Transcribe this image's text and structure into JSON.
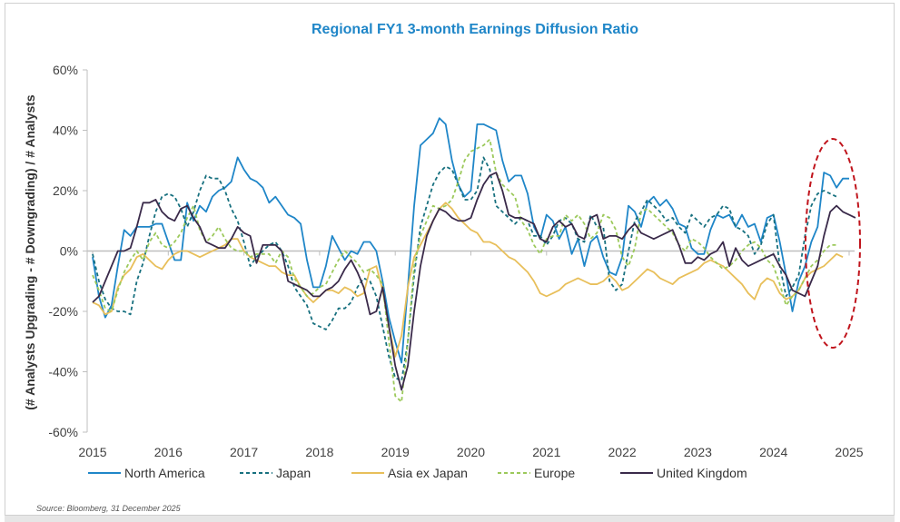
{
  "chart_data": {
    "type": "line",
    "title": "Regional FY1 3-month Earnings Diffusion Ratio",
    "xlabel": "",
    "ylabel": "(# Analysts Upgrading - # Downgrading) / #  Analysts",
    "x_start": 2015,
    "x_step_months": 1,
    "xlim": [
      2015,
      2025
    ],
    "ylim": [
      -60,
      60
    ],
    "x_ticks": [
      "2015",
      "2016",
      "2017",
      "2018",
      "2019",
      "2020",
      "2021",
      "2022",
      "2023",
      "2024",
      "2025"
    ],
    "y_ticks": [
      "-60%",
      "-40%",
      "-20%",
      "0%",
      "20%",
      "40%",
      "60%"
    ],
    "y_tick_values": [
      -60,
      -40,
      -20,
      0,
      20,
      40,
      60
    ],
    "zero_line": true,
    "legend_position": "bottom",
    "annotation": "red dashed ellipse highlighting late 2024 rebound",
    "series": [
      {
        "name": "North America",
        "color": "#1f86c8",
        "dash": "solid",
        "values": [
          -2,
          -15,
          -22,
          -18,
          -5,
          7,
          5,
          8,
          8,
          8,
          9,
          9,
          3,
          -3,
          -3,
          16,
          10,
          15,
          13,
          18,
          20,
          21,
          23,
          31,
          27,
          24,
          23,
          21,
          16,
          18,
          15,
          12,
          11,
          9,
          -3,
          -12,
          -12,
          -5,
          5,
          1,
          -3,
          0,
          -1,
          3,
          3,
          0,
          -10,
          -22,
          -30,
          -37,
          -12,
          15,
          35,
          37,
          39,
          44,
          42,
          30,
          22,
          18,
          20,
          42,
          42,
          41,
          40,
          30,
          23,
          25,
          25,
          19,
          8,
          4,
          12,
          10,
          4,
          8,
          -1,
          4,
          -5,
          3,
          5,
          -2,
          -7,
          -8,
          -2,
          15,
          13,
          8,
          16,
          18,
          15,
          17,
          14,
          9,
          8,
          1,
          -1,
          -1,
          7,
          12,
          11,
          12,
          8,
          12,
          8,
          9,
          3,
          11,
          12,
          3,
          -8,
          -20,
          -10,
          -5,
          3,
          8,
          26,
          25,
          21,
          24,
          24
        ]
      },
      {
        "name": "Japan",
        "color": "#17707f",
        "dash": "4,3",
        "values": [
          -1,
          -10,
          -16,
          -19,
          -20,
          -20,
          -21,
          -10,
          -4,
          5,
          13,
          18,
          19,
          18,
          14,
          8,
          13,
          20,
          25,
          24,
          24,
          20,
          14,
          10,
          3,
          -5,
          -2,
          0,
          2,
          3,
          0,
          -5,
          -12,
          -15,
          -18,
          -24,
          -25,
          -26,
          -23,
          -19,
          -19,
          -17,
          -12,
          -9,
          -10,
          -15,
          -25,
          -35,
          -42,
          -43,
          -30,
          -8,
          8,
          15,
          22,
          26,
          28,
          27,
          22,
          17,
          17,
          20,
          31,
          27,
          15,
          13,
          11,
          9,
          11,
          10,
          5,
          5,
          2,
          5,
          10,
          11,
          9,
          4,
          3,
          12,
          8,
          8,
          -10,
          -13,
          -11,
          0,
          10,
          13,
          17,
          15,
          13,
          10,
          11,
          8,
          6,
          12,
          10,
          8,
          11,
          12,
          15,
          14,
          8,
          7,
          5,
          -1,
          2,
          9,
          12,
          -5,
          -15,
          -12,
          -8,
          5,
          15,
          19,
          20,
          19,
          18
        ]
      },
      {
        "name": "Asia ex Japan",
        "color": "#e8bf5a",
        "dash": "solid",
        "values": [
          -17,
          -18,
          -21,
          -20,
          -12,
          -8,
          -6,
          -2,
          -1,
          -3,
          -5,
          -6,
          -3,
          -1,
          0,
          0,
          -1,
          -2,
          -1,
          0,
          1,
          2,
          4,
          4,
          0,
          -2,
          -3,
          -4,
          -5,
          -5,
          -7,
          -8,
          -8,
          -12,
          -15,
          -17,
          -15,
          -13,
          -13,
          -14,
          -12,
          -13,
          -15,
          -14,
          -6,
          -5,
          -13,
          -25,
          -35,
          -28,
          -12,
          -2,
          2,
          6,
          10,
          14,
          16,
          14,
          11,
          9,
          7,
          6,
          3,
          3,
          2,
          0,
          -2,
          -3,
          -5,
          -7,
          -10,
          -14,
          -15,
          -14,
          -13,
          -11,
          -10,
          -9,
          -10,
          -11,
          -11,
          -10,
          -8,
          -10,
          -13,
          -12,
          -10,
          -8,
          -6,
          -7,
          -9,
          -10,
          -11,
          -9,
          -8,
          -7,
          -6,
          -4,
          -3,
          -4,
          -5,
          -7,
          -9,
          -11,
          -14,
          -16,
          -11,
          -9,
          -10,
          -14,
          -16,
          -15,
          -13,
          -9,
          -7,
          -6,
          -5,
          -3,
          -1,
          -2
        ]
      },
      {
        "name": "Europe",
        "color": "#9cc95b",
        "dash": "4,3",
        "values": [
          -8,
          -13,
          -19,
          -20,
          -13,
          -7,
          -3,
          0,
          -3,
          3,
          6,
          2,
          1,
          3,
          6,
          11,
          15,
          7,
          3,
          5,
          8,
          4,
          1,
          0,
          0,
          -2,
          -1,
          -1,
          -1,
          -4,
          0,
          -2,
          -9,
          -12,
          -15,
          -14,
          -12,
          -11,
          -7,
          -3,
          0,
          -2,
          -4,
          -7,
          -6,
          -8,
          -11,
          -30,
          -48,
          -50,
          -30,
          -5,
          5,
          10,
          15,
          14,
          15,
          17,
          23,
          30,
          33,
          34,
          35,
          37,
          26,
          22,
          20,
          18,
          10,
          7,
          2,
          -1,
          4,
          5,
          5,
          12,
          10,
          12,
          9,
          4,
          6,
          12,
          11,
          7,
          -2,
          -5,
          1,
          13,
          14,
          12,
          10,
          8,
          6,
          2,
          0,
          4,
          3,
          1,
          -2,
          -4,
          -6,
          -5,
          -3,
          0,
          2,
          3,
          1,
          -3,
          -5,
          -11,
          -18,
          -15,
          -13,
          -9,
          -5,
          -3,
          0,
          2,
          2
        ]
      },
      {
        "name": "United Kingdom",
        "color": "#3a2a4a",
        "dash": "solid",
        "values": [
          -17,
          -15,
          -10,
          -5,
          0,
          0,
          1,
          8,
          16,
          16,
          17,
          13,
          11,
          10,
          14,
          15,
          11,
          8,
          3,
          2,
          1,
          1,
          4,
          8,
          6,
          5,
          -4,
          2,
          2,
          2,
          0,
          -10,
          -11,
          -12,
          -13,
          -15,
          -15,
          -13,
          -12,
          -10,
          -6,
          -3,
          -7,
          -12,
          -21,
          -20,
          -12,
          -25,
          -38,
          -46,
          -38,
          -20,
          -5,
          5,
          10,
          14,
          13,
          11,
          10,
          10,
          11,
          17,
          22,
          25,
          26,
          20,
          12,
          11,
          11,
          10,
          9,
          4,
          3,
          8,
          10,
          8,
          9,
          5,
          4,
          11,
          12,
          4,
          5,
          5,
          4,
          7,
          9,
          6,
          5,
          4,
          5,
          6,
          7,
          2,
          -4,
          -4,
          -2,
          -3,
          -1,
          0,
          3,
          -5,
          1,
          -3,
          -5,
          -4,
          -3,
          -2,
          -1,
          -5,
          -8,
          -13,
          -14,
          -15,
          -10,
          -5,
          5,
          13,
          15,
          13,
          12,
          11
        ]
      }
    ]
  },
  "source": "Source: Bloomberg, 31 December 2025"
}
